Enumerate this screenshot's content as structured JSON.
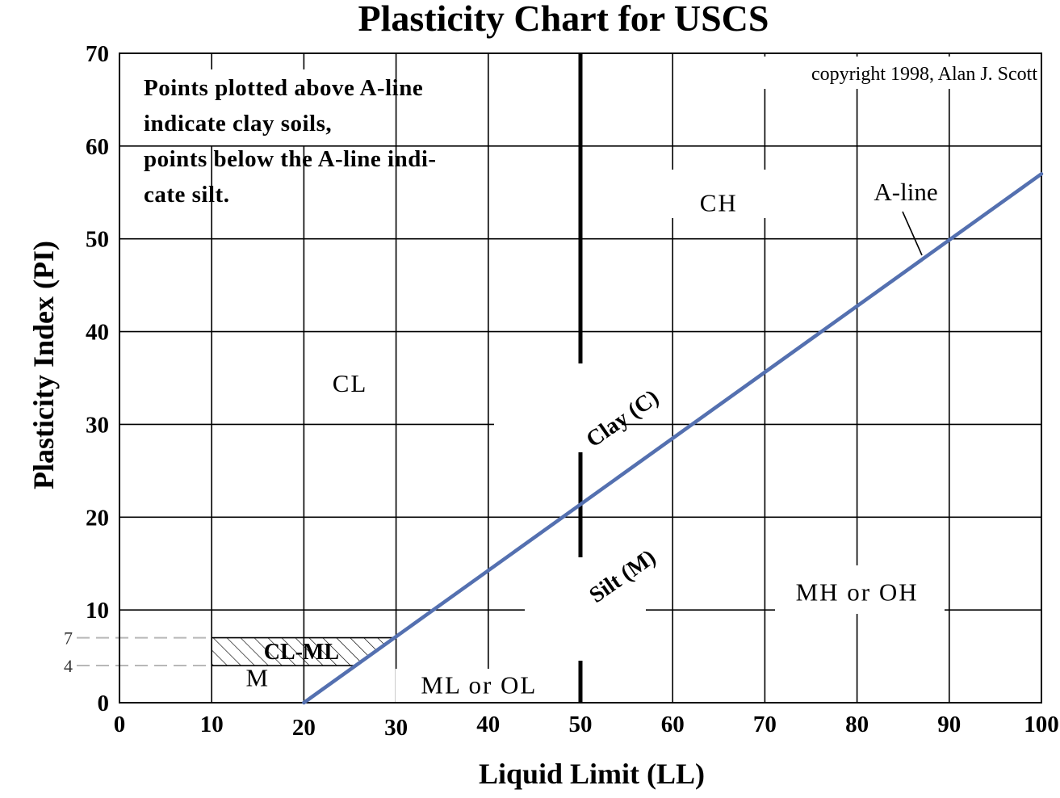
{
  "chart_data": {
    "type": "line",
    "title": "Plasticity Chart for USCS",
    "xlabel": "Liquid Limit (LL)",
    "ylabel": "Plasticity Index (PI)",
    "xlim": [
      0,
      100
    ],
    "ylim": [
      0,
      70
    ],
    "x_ticks": [
      "0",
      "10",
      "20",
      "30",
      "40",
      "50",
      "60",
      "70",
      "80",
      "90",
      "100"
    ],
    "y_ticks": [
      "0",
      "10",
      "20",
      "30",
      "40",
      "50",
      "60",
      "70"
    ],
    "y_extra_ticks": [
      {
        "label": "7",
        "value": 7
      },
      {
        "label": "4",
        "value": 4
      }
    ],
    "grid": true,
    "series": [
      {
        "name": "A-line",
        "color": "#5470b0",
        "points": [
          {
            "x": 20,
            "y": 0
          },
          {
            "x": 100,
            "y": 57
          }
        ]
      }
    ],
    "divider_ll": 50,
    "cl_ml_band": {
      "x": [
        10,
        30
      ],
      "y": [
        4,
        7
      ],
      "label": "CL-ML"
    },
    "note_lines": [
      "Points plotted above A-line",
      "indicate clay soils,",
      "points below the A-line indi-",
      "cate silt."
    ],
    "copyright": "copyright 1998, Alan J. Scott",
    "zones": [
      {
        "label": "CH",
        "x": 65,
        "y": 53
      },
      {
        "label": "CL",
        "x": 25,
        "y": 33.5
      },
      {
        "label": "MH or OH",
        "x": 80,
        "y": 11
      },
      {
        "label": "ML or OL",
        "x": 39,
        "y": 1
      },
      {
        "label": "M",
        "x": 15,
        "y": 1.8
      }
    ],
    "region_labels": [
      {
        "label": "Clay (C)",
        "x": 55,
        "y": 30,
        "angle": -35
      },
      {
        "label": "Silt (M)",
        "x": 55,
        "y": 13,
        "angle": -35
      }
    ],
    "aline_label": "A-line"
  }
}
